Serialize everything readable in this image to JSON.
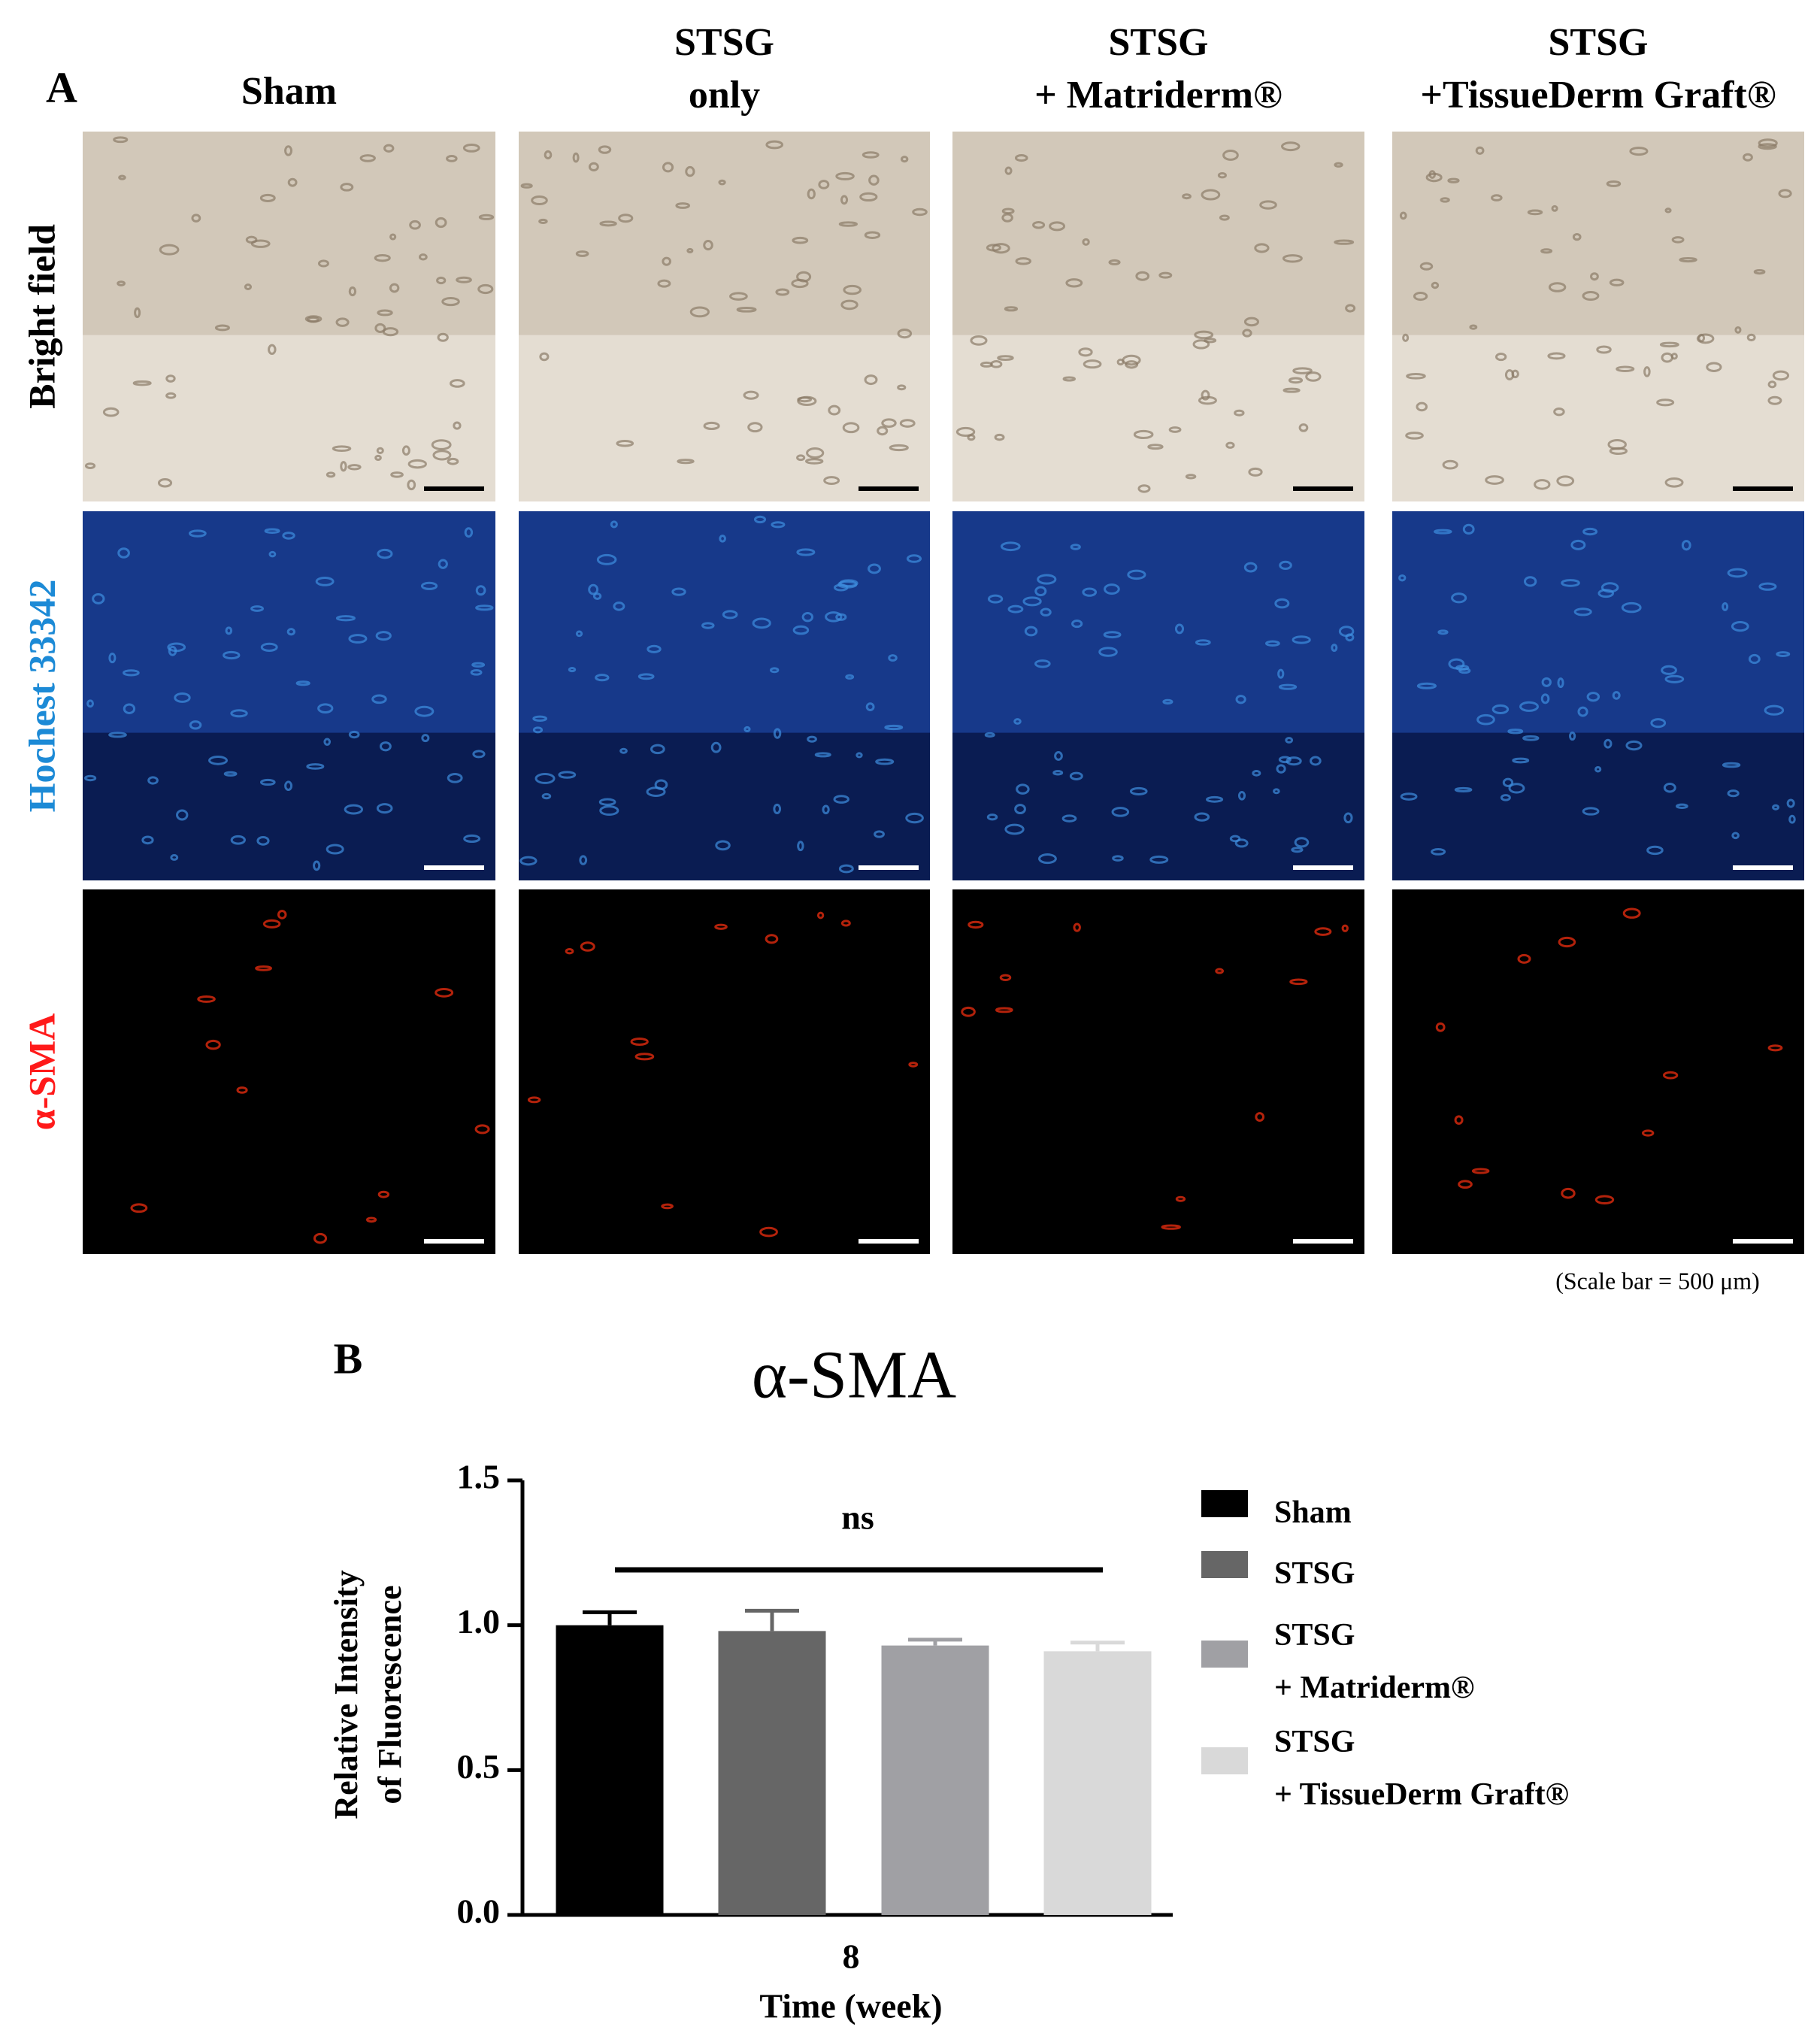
{
  "panel_a": {
    "label": "A",
    "columns": [
      [
        "Sham"
      ],
      [
        "STSG",
        "only"
      ],
      [
        "STSG",
        "+ Matriderm®"
      ],
      [
        "STSG",
        "+TissueDerm Graft®"
      ]
    ],
    "rows": [
      "Bright field",
      "Hochest 33342",
      "α-SMA"
    ],
    "scale_note": "(Scale bar = 500 μm)"
  },
  "chart_data": {
    "type": "bar",
    "panel_label": "B",
    "title": "α-SMA",
    "y_label": [
      "Relative Intensity",
      "of Fluorescence"
    ],
    "x_label": "Time (week)",
    "categories": [
      "8"
    ],
    "annotation": "ns",
    "ylim": [
      0,
      1.5
    ],
    "yticks": [
      {
        "value": 0,
        "label": "0.0"
      },
      0.5,
      {
        "value": 1,
        "label": "1.0"
      },
      1.5
    ],
    "series": [
      {
        "name": "Sham",
        "color": "#000000",
        "values": [
          1.0
        ],
        "errors": [
          0.045
        ]
      },
      {
        "name": "STSG",
        "color": "#666666",
        "values": [
          0.98
        ],
        "errors": [
          0.07
        ]
      },
      {
        "name": "STSG\n+ Matriderm®",
        "color": "#a0a0a4",
        "values": [
          0.93
        ],
        "errors": [
          0.02
        ]
      },
      {
        "name": "STSG\n+ TissueDerm Graft®",
        "color": "#d9d9d9",
        "values": [
          0.91
        ],
        "errors": [
          0.03
        ]
      }
    ]
  }
}
